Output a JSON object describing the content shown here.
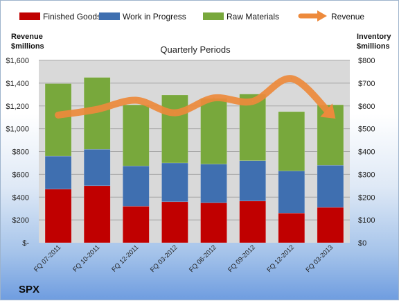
{
  "company": "SPX",
  "chart_data": {
    "type": "bar",
    "stacked": true,
    "title": "Quarterly Periods",
    "left_axis": {
      "label_line1": "Revenue",
      "label_line2": "$millions",
      "ylim": [
        0,
        1600
      ],
      "ticks": [
        "$-",
        "$200",
        "$400",
        "$600",
        "$800",
        "$1,000",
        "$1,200",
        "$1,400",
        "$1,600"
      ]
    },
    "right_axis": {
      "label_line1": "Inventory",
      "label_line2": "$millions",
      "ylim": [
        0,
        800
      ],
      "ticks": [
        "$0",
        "$100",
        "$200",
        "$300",
        "$400",
        "$500",
        "$600",
        "$700",
        "$800"
      ]
    },
    "categories": [
      "FQ 07-2011",
      "FQ 10-2011",
      "FQ 12-2011",
      "FQ 03-2012",
      "FQ 06-2012",
      "FQ 09-2012",
      "FQ 12-2012",
      "FQ 03-2013"
    ],
    "series": [
      {
        "name": "Finished Goods",
        "color": "#c00000",
        "axis": "right",
        "values": [
          235,
          250,
          160,
          180,
          175,
          183,
          130,
          155
        ]
      },
      {
        "name": "Work in Progress",
        "color": "#3f6fb0",
        "axis": "right",
        "values": [
          145,
          160,
          177,
          170,
          170,
          177,
          185,
          185
        ]
      },
      {
        "name": "Raw Materials",
        "color": "#78a83c",
        "axis": "right",
        "values": [
          318,
          315,
          268,
          298,
          288,
          292,
          260,
          265
        ]
      }
    ],
    "line_series": {
      "name": "Revenue",
      "color": "#ed8a3c",
      "axis": "left",
      "values": [
        1120,
        1170,
        1250,
        1140,
        1270,
        1240,
        1440,
        1130
      ]
    },
    "legend_position": "top",
    "grid": true
  }
}
